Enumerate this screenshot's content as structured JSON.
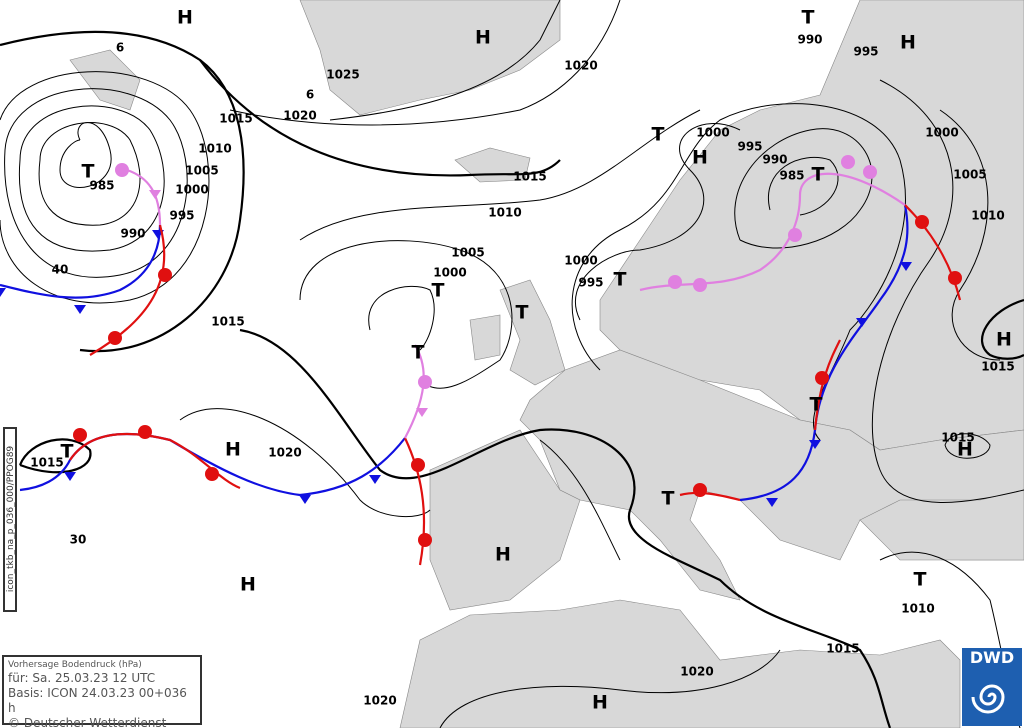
{
  "map": {
    "type": "surface pressure forecast chart",
    "colors": {
      "land": "#d8d8d8",
      "sea": "#ffffff",
      "cold_front": "#1010e0",
      "warm_front": "#e01010",
      "occlusion": "#e080e0",
      "isobar": "#000000"
    },
    "labels": [
      "H",
      "H",
      "T",
      "990",
      "995",
      "H",
      "1025",
      "1020",
      "1020",
      "1015",
      "1010",
      "1005",
      "1000",
      "T",
      "985",
      "995",
      "990",
      "1015",
      "1010",
      "T",
      "1000",
      "H",
      "995",
      "990",
      "985",
      "T",
      "1000",
      "1005",
      "1010",
      "1005",
      "1000",
      "T",
      "T",
      "1000",
      "995",
      "T",
      "1015",
      "H",
      "1015",
      "T",
      "T",
      "1015",
      "H",
      "H",
      "1020",
      "T",
      "1015",
      "T",
      "H",
      "H",
      "30",
      "40",
      "T",
      "1010",
      "1020",
      "1015",
      "1020",
      "H",
      "6",
      "6"
    ]
  },
  "legend": {
    "title": "Vorhersage Bodendruck (hPa)",
    "valid": "für:  Sa. 25.03.23  12 UTC",
    "basis": "Basis: ICON  24.03.23 00+036 h",
    "copyright": "© Deutscher Wetterdienst"
  },
  "side_code": "icon_tkb_na_p_036_000/PPOG89",
  "logo": "DWD"
}
